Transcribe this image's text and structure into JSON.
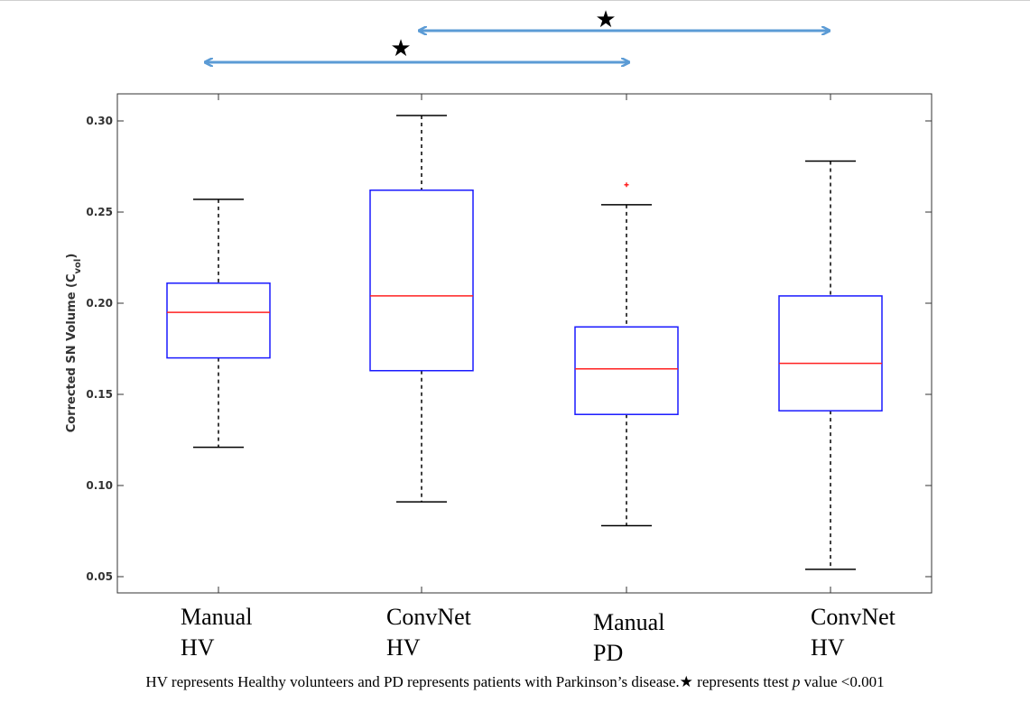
{
  "chart_data": {
    "type": "box",
    "ylabel_main": "Corrected SN Volume (C",
    "ylabel_sub": "vol",
    "ylabel_end": ")",
    "ylim": [
      0.04,
      0.315
    ],
    "yticks": [
      0.05,
      0.1,
      0.15,
      0.2,
      0.25,
      0.3
    ],
    "ytick_labels": [
      "0.05",
      "0.10",
      "0.15",
      "0.20",
      "0.25",
      "0.30"
    ],
    "categories": [
      {
        "line1": "Manual",
        "line2": "HV"
      },
      {
        "line1": "ConvNet",
        "line2": "HV"
      },
      {
        "line1": "Manual",
        "line2": "PD"
      },
      {
        "line1": "ConvNet",
        "line2": "HV"
      }
    ],
    "boxes": [
      {
        "whisker_low": 0.121,
        "q1": 0.17,
        "median": 0.195,
        "q3": 0.211,
        "whisker_high": 0.257,
        "outliers": []
      },
      {
        "whisker_low": 0.091,
        "q1": 0.163,
        "median": 0.204,
        "q3": 0.262,
        "whisker_high": 0.303,
        "outliers": []
      },
      {
        "whisker_low": 0.078,
        "q1": 0.139,
        "median": 0.164,
        "q3": 0.187,
        "whisker_high": 0.254,
        "outliers": [
          0.265
        ]
      },
      {
        "whisker_low": 0.054,
        "q1": 0.141,
        "median": 0.167,
        "q3": 0.204,
        "whisker_high": 0.278,
        "outliers": []
      }
    ],
    "significance": [
      {
        "from": 0,
        "to": 2,
        "symbol": "★"
      },
      {
        "from": 1,
        "to": 3,
        "symbol": "★"
      }
    ],
    "colors": {
      "box": "#1a1aff",
      "median": "#ff2020",
      "whisker": "#000000",
      "outlier": "#ff2020",
      "arrow": "#5b9bd5",
      "axis": "#333333"
    }
  },
  "caption": {
    "part1": "HV represents Healthy volunteers and PD represents patients with Parkinson’s disease.",
    "star": "★",
    "part2": " represents ttest ",
    "p": "p",
    "part3": " value <0.001"
  }
}
